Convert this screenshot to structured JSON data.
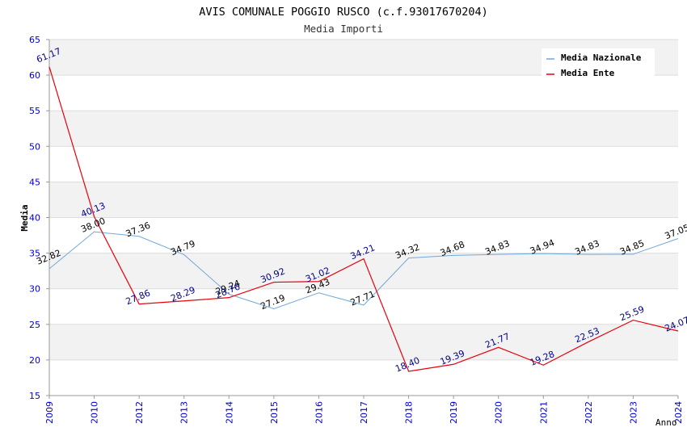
{
  "chart_data": {
    "type": "line",
    "title": "AVIS COMUNALE POGGIO RUSCO (c.f.93017670204)",
    "subtitle": "Media Importi",
    "xlabel": "Anno",
    "ylabel": "Media",
    "ylim": [
      15,
      65
    ],
    "yticks": [
      "15",
      "20",
      "25",
      "30",
      "35",
      "40",
      "45",
      "50",
      "55",
      "60",
      "65"
    ],
    "categories": [
      "2009",
      "2010",
      "2012",
      "2013",
      "2014",
      "2015",
      "2016",
      "2017",
      "2018",
      "2019",
      "2020",
      "2021",
      "2022",
      "2023",
      "2024"
    ],
    "grid": true,
    "legend_position": "top-right",
    "series": [
      {
        "name": "Media Nazionale",
        "color": "#6fa8dc",
        "label_color": "#000000",
        "values": [
          32.82,
          38.0,
          37.36,
          34.79,
          29.24,
          27.19,
          29.43,
          27.71,
          34.32,
          34.68,
          34.83,
          34.94,
          34.83,
          34.85,
          37.05
        ],
        "labels": [
          "32.82",
          "38.00",
          "37.36",
          "34.79",
          "29.24",
          "27.19",
          "29.43",
          "27.71",
          "34.32",
          "34.68",
          "34.83",
          "34.94",
          "34.83",
          "34.85",
          "37.05"
        ]
      },
      {
        "name": "Media Ente",
        "color": "#e8000b",
        "label_color": "#00008b",
        "values": [
          61.17,
          40.13,
          27.86,
          28.29,
          28.76,
          30.92,
          31.02,
          34.21,
          18.4,
          19.39,
          21.77,
          19.28,
          22.53,
          25.59,
          24.07
        ],
        "labels": [
          "61.17",
          "40.13",
          "27.86",
          "28.29",
          "28.76",
          "30.92",
          "31.02",
          "34.21",
          "18.40",
          "19.39",
          "21.77",
          "19.28",
          "22.53",
          "25.59",
          "24.07"
        ]
      }
    ],
    "colors": {
      "axis_text": "#0000cc",
      "band": "#f2f2f2",
      "grid": "#dddddd"
    }
  }
}
